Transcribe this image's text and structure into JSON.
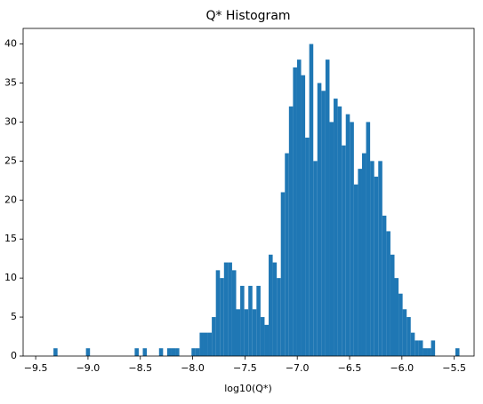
{
  "chart_data": {
    "type": "histogram",
    "title": "Q* Histogram",
    "x_label": "log10(Q*)",
    "color": "#1f77b4",
    "bins": [
      -9.33,
      -9.2912,
      -9.2524,
      -9.2136,
      -9.1748,
      -9.136,
      -9.0972,
      -9.0584,
      -9.0196,
      -8.9808,
      -8.942,
      -8.9032,
      -8.8644,
      -8.8256,
      -8.7868,
      -8.748,
      -8.7092,
      -8.6704,
      -8.6316,
      -8.5928,
      -8.554,
      -8.5152,
      -8.4764,
      -8.4376,
      -8.3988,
      -8.36,
      -8.3212,
      -8.2824,
      -8.2436,
      -8.2048,
      -8.166,
      -8.1272,
      -8.0884,
      -8.0496,
      -8.0108,
      -7.972,
      -7.9332,
      -7.8944,
      -7.8556,
      -7.8168,
      -7.778,
      -7.7392,
      -7.7004,
      -7.6616,
      -7.6228,
      -7.584,
      -7.5452,
      -7.5064,
      -7.4676,
      -7.4288,
      -7.39,
      -7.3512,
      -7.3124,
      -7.2736,
      -7.2348,
      -7.196,
      -7.1572,
      -7.1184,
      -7.0796,
      -7.0408,
      -7.002,
      -6.9632,
      -6.9244,
      -6.8856,
      -6.8468,
      -6.808,
      -6.7692,
      -6.7304,
      -6.6916,
      -6.6528,
      -6.614,
      -6.5752,
      -6.5364,
      -6.4976,
      -6.4588,
      -6.42,
      -6.3812,
      -6.3424,
      -6.3036,
      -6.2648,
      -6.226,
      -6.1872,
      -6.1484,
      -6.1096,
      -6.0708,
      -6.032,
      -5.9932,
      -5.9544,
      -5.9156,
      -5.8768,
      -5.838,
      -5.7992,
      -5.7604,
      -5.7216,
      -5.6828,
      -5.644,
      -5.6052,
      -5.5664,
      -5.5276,
      -5.4888,
      -5.45
    ],
    "values": [
      1,
      0,
      0,
      0,
      0,
      0,
      0,
      0,
      1,
      0,
      0,
      0,
      0,
      0,
      0,
      0,
      0,
      0,
      0,
      0,
      1,
      0,
      1,
      0,
      0,
      0,
      1,
      0,
      1,
      1,
      1,
      0,
      0,
      0,
      1,
      1,
      3,
      3,
      3,
      5,
      11,
      10,
      12,
      12,
      11,
      6,
      9,
      6,
      9,
      6,
      9,
      5,
      4,
      13,
      12,
      10,
      21,
      26,
      32,
      37,
      38,
      36,
      28,
      40,
      25,
      35,
      34,
      38,
      30,
      33,
      32,
      27,
      31,
      30,
      22,
      24,
      26,
      30,
      25,
      23,
      25,
      18,
      16,
      13,
      10,
      8,
      6,
      5,
      3,
      2,
      2,
      1,
      1,
      2,
      0,
      0,
      0,
      0,
      0,
      1
    ],
    "xlim": [
      -9.62,
      -5.31
    ],
    "xticks": [
      {
        "value": -9.5,
        "label": "−9.5"
      },
      {
        "value": -9.0,
        "label": "−9.0"
      },
      {
        "value": -8.5,
        "label": "−8.5"
      },
      {
        "value": -8.0,
        "label": "−8.0"
      },
      {
        "value": -7.5,
        "label": "−7.5"
      },
      {
        "value": -7.0,
        "label": "−7.0"
      },
      {
        "value": -6.5,
        "label": "−6.5"
      },
      {
        "value": -6.0,
        "label": "−6.0"
      },
      {
        "value": -5.5,
        "label": "−5.5"
      }
    ],
    "ylim": [
      0,
      42
    ],
    "yticks": [
      0,
      5,
      10,
      15,
      20,
      25,
      30,
      35,
      40
    ]
  }
}
